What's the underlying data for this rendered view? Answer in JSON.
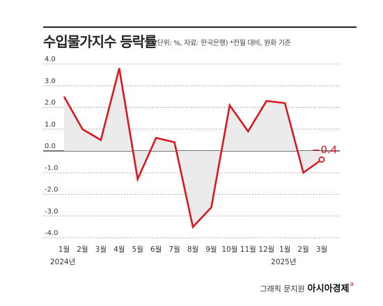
{
  "header": {
    "title": "수입물가지수 등락률",
    "subtitle": "(단위: %, 자료: 한국은행) *전월 대비, 원화 기준"
  },
  "footer": {
    "credit": "그래픽 문지원",
    "brand": "아시아경제",
    "brand_mark": "a"
  },
  "colors": {
    "line": "#d7181f",
    "fill": "#ebebeb",
    "grid": "#777777",
    "zero_line": "#222222"
  },
  "chart_data": {
    "type": "line",
    "title": "수입물가지수 등락률",
    "categories": [
      "1월",
      "2월",
      "3월",
      "4월",
      "5월",
      "6월",
      "7월",
      "8월",
      "9월",
      "10월",
      "11월",
      "12월",
      "1월",
      "2월",
      "3월"
    ],
    "year_labels": [
      {
        "index": 0,
        "label": "2024년"
      },
      {
        "index": 12,
        "label": "2025년"
      }
    ],
    "series": [
      {
        "values": [
          2.5,
          1.0,
          0.5,
          3.8,
          -1.3,
          0.6,
          0.4,
          -3.5,
          -2.6,
          2.1,
          0.9,
          2.3,
          2.2,
          -1.0,
          -0.4
        ]
      }
    ],
    "y_ticks": [
      "4.0",
      "3.0",
      "2.0",
      "1.0",
      "0.0",
      "-1.0",
      "-2.0",
      "-3.0",
      "-4.0"
    ],
    "y_tick_values": [
      4,
      3,
      2,
      1,
      0,
      -1,
      -2,
      -3,
      -4
    ],
    "ylim": [
      -4,
      4
    ],
    "grid": "dotted horizontal",
    "area_fill_to_zero": true,
    "annotation": {
      "index": 14,
      "label": "−0.4"
    }
  }
}
